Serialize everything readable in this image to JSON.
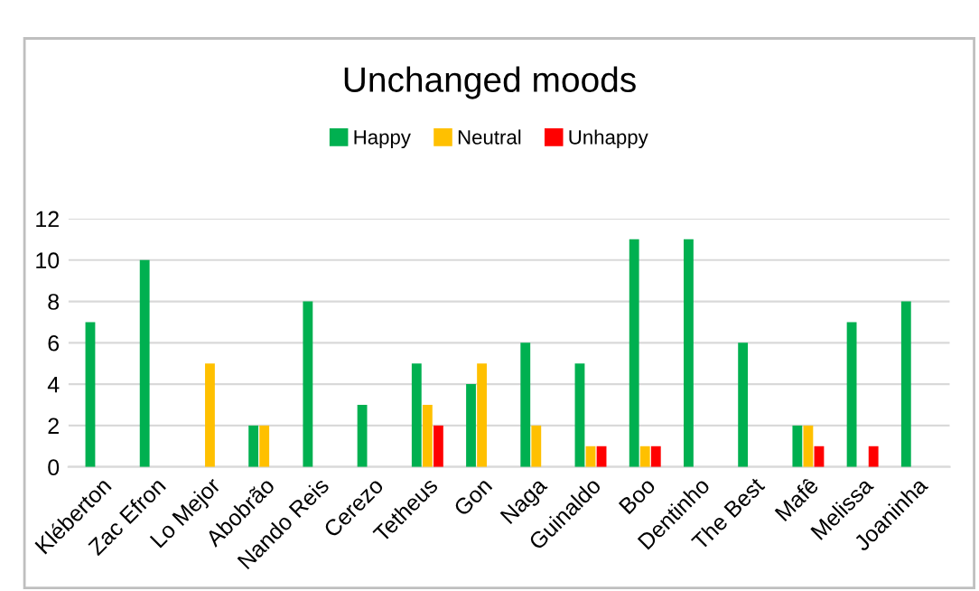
{
  "chart_data": {
    "type": "bar",
    "title": "Unchanged moods",
    "categories": [
      "Kléberton",
      "Zac Efron",
      "Lo Mejor",
      "Abobrão",
      "Nando Reis",
      "Cerezo",
      "Tetheus",
      "Gon",
      "Naga",
      "Guinaldo",
      "Boo",
      "Dentinho",
      "The Best",
      "Mafê",
      "Melissa",
      "Joaninha"
    ],
    "series": [
      {
        "name": "Happy",
        "color": "#00b050",
        "values": [
          7,
          10,
          null,
          2,
          8,
          3,
          5,
          4,
          6,
          5,
          11,
          11,
          6,
          2,
          7,
          8
        ]
      },
      {
        "name": "Neutral",
        "color": "#ffc000",
        "values": [
          null,
          null,
          5,
          2,
          null,
          null,
          3,
          5,
          2,
          1,
          1,
          null,
          null,
          2,
          null,
          null
        ]
      },
      {
        "name": "Unhappy",
        "color": "#ff0000",
        "values": [
          null,
          null,
          null,
          null,
          null,
          null,
          2,
          null,
          null,
          1,
          1,
          null,
          null,
          1,
          1,
          null
        ]
      }
    ],
    "ylim": [
      0,
      12
    ],
    "yticks": [
      0,
      2,
      4,
      6,
      8,
      10,
      12
    ],
    "grid": "y",
    "legend": "top"
  }
}
